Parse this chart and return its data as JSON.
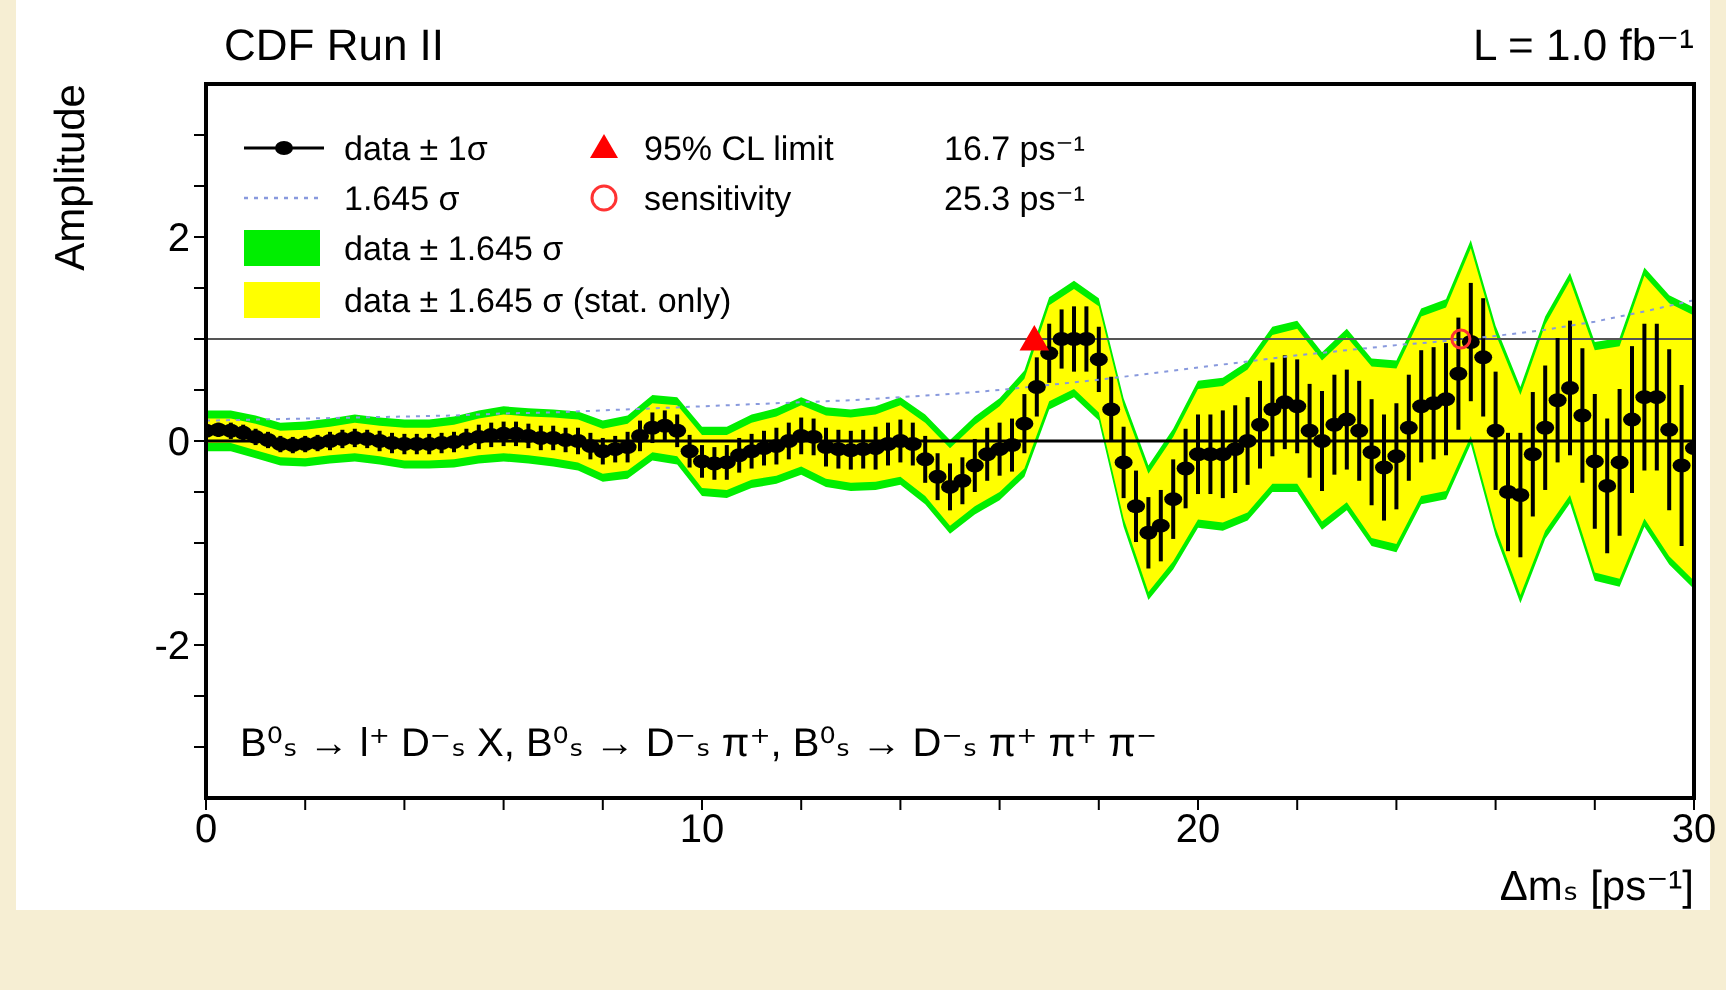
{
  "chart_data": {
    "type": "scatter",
    "title": "CDF Run II",
    "subtitle": "L = 1.0 fb⁻¹",
    "xlabel": "Δmₛ [ps⁻¹]",
    "ylabel": "Amplitude",
    "annotations": [
      "16.7 ps⁻¹",
      "25.3 ps⁻¹",
      "B⁰ₛ → l⁺ D⁻ₛ X, B⁰ₛ → D⁻ₛ π⁺, B⁰ₛ → D⁻ₛ π⁺ π⁺ π⁻"
    ],
    "xlim": [
      0,
      30
    ],
    "ylim": [
      -3.5,
      3.5
    ],
    "xticks": [
      0,
      {
        "value": 2,
        "label": null
      },
      {
        "value": 4,
        "label": null
      },
      {
        "value": 6,
        "label": null
      },
      {
        "value": 8,
        "label": null
      },
      10,
      {
        "value": 12,
        "label": null
      },
      {
        "value": 14,
        "label": null
      },
      {
        "value": 16,
        "label": null
      },
      {
        "value": 18,
        "label": null
      },
      20,
      {
        "value": 22,
        "label": null
      },
      {
        "value": 24,
        "label": null
      },
      {
        "value": 26,
        "label": null
      },
      {
        "value": 28,
        "label": null
      },
      30
    ],
    "yticks": [
      {
        "value": -3,
        "label": null
      },
      {
        "value": -2.5,
        "label": null
      },
      -2,
      {
        "value": -1.5,
        "label": null
      },
      {
        "value": -1,
        "label": null
      },
      {
        "value": -0.5,
        "label": null
      },
      0,
      {
        "value": 0.5,
        "label": null
      },
      {
        "value": 1,
        "label": null
      },
      {
        "value": 1.5,
        "label": null
      },
      2,
      {
        "value": 2.5,
        "label": null
      },
      {
        "value": 3,
        "label": null
      }
    ],
    "legend": "top left",
    "ref_lines": [
      {
        "axis": "y",
        "value": 0,
        "color": "#000000"
      },
      {
        "axis": "y",
        "value": 1,
        "color": "#555555"
      }
    ],
    "x": [
      0,
      0.25,
      0.5,
      0.75,
      1,
      1.25,
      1.5,
      1.75,
      2,
      2.25,
      2.5,
      2.75,
      3,
      3.25,
      3.5,
      3.75,
      4,
      4.25,
      4.5,
      4.75,
      5,
      5.25,
      5.5,
      5.75,
      6,
      6.25,
      6.5,
      6.75,
      7,
      7.25,
      7.5,
      7.75,
      8,
      8.25,
      8.5,
      8.75,
      9,
      9.25,
      9.5,
      9.75,
      10,
      10.25,
      10.5,
      10.75,
      11,
      11.25,
      11.5,
      11.75,
      12,
      12.25,
      12.5,
      12.75,
      13,
      13.25,
      13.5,
      13.75,
      14,
      14.25,
      14.5,
      14.75,
      15,
      15.25,
      15.5,
      15.75,
      16,
      16.25,
      16.5,
      16.75,
      17,
      17.25,
      17.5,
      17.75,
      18,
      18.25,
      18.5,
      18.75,
      19,
      19.25,
      19.5,
      19.75,
      20,
      20.25,
      20.5,
      20.75,
      21,
      21.25,
      21.5,
      21.75,
      22,
      22.25,
      22.5,
      22.75,
      23,
      23.25,
      23.5,
      23.75,
      24,
      24.25,
      24.5,
      24.75,
      25,
      25.25,
      25.5,
      25.75,
      26,
      26.25,
      26.5,
      26.75,
      27,
      27.25,
      27.5,
      27.75,
      28,
      28.25,
      28.5,
      28.75,
      29,
      29.25,
      29.5,
      29.75,
      30
    ],
    "series": [
      {
        "type": "line",
        "name": "data ± 1.645 σ",
        "color": "#00ee00",
        "marker": "none",
        "x": [
          0,
          0.5,
          1,
          1.5,
          2,
          2.5,
          3,
          3.5,
          4,
          4.5,
          5,
          5.5,
          6,
          6.5,
          7,
          7.5,
          8,
          8.5,
          9,
          9.5,
          10,
          10.5,
          11,
          11.5,
          12,
          12.5,
          13,
          13.5,
          14,
          14.5,
          15,
          15.5,
          16,
          16.5,
          17,
          17.5,
          18,
          18.5,
          19,
          19.5,
          20,
          20.5,
          21,
          21.5,
          22,
          22.5,
          23,
          23.5,
          24,
          24.5,
          25,
          25.5,
          26,
          26.5,
          27,
          27.5,
          28,
          28.5,
          29,
          29.5,
          30
        ],
        "values": [
          null,
          null,
          null,
          null,
          null,
          null,
          null,
          null,
          null,
          null,
          null,
          null,
          null,
          null,
          null,
          null,
          null,
          null,
          null,
          null,
          null,
          null,
          null,
          null,
          null,
          null,
          null,
          null,
          null,
          null,
          null,
          null,
          null,
          null,
          null,
          null,
          null,
          null,
          null,
          null,
          null,
          null,
          null,
          null,
          null,
          null,
          null,
          null,
          null,
          null,
          null,
          null,
          null,
          null,
          null,
          null,
          null,
          null,
          null,
          null,
          null
        ],
        "lower": [
          -0.1,
          -0.1,
          -0.17,
          -0.24,
          -0.25,
          -0.22,
          -0.2,
          -0.23,
          -0.27,
          -0.27,
          -0.26,
          -0.22,
          -0.2,
          -0.22,
          -0.25,
          -0.29,
          -0.4,
          -0.37,
          -0.19,
          -0.23,
          -0.54,
          -0.56,
          -0.46,
          -0.42,
          -0.33,
          -0.45,
          -0.49,
          -0.48,
          -0.43,
          -0.62,
          -0.91,
          -0.72,
          -0.58,
          -0.35,
          0.31,
          0.43,
          0.2,
          -0.84,
          -1.56,
          -1.26,
          -0.85,
          -0.88,
          -0.78,
          -0.5,
          -0.5,
          -0.87,
          -0.68,
          -1.03,
          -1.09,
          -0.62,
          -0.57,
          -0.03,
          -0.93,
          -1.59,
          -0.96,
          -0.61,
          -1.37,
          -1.43,
          -0.84,
          -1.21,
          -1.45
        ],
        "upper": [
          0.3,
          0.3,
          0.25,
          0.18,
          0.19,
          0.22,
          0.26,
          0.23,
          0.21,
          0.21,
          0.24,
          0.3,
          0.34,
          0.32,
          0.31,
          0.29,
          0.2,
          0.25,
          0.45,
          0.43,
          0.14,
          0.14,
          0.26,
          0.32,
          0.43,
          0.33,
          0.31,
          0.34,
          0.43,
          0.26,
          0.01,
          0.24,
          0.42,
          0.69,
          1.41,
          1.57,
          1.4,
          0.42,
          -0.24,
          0.12,
          0.59,
          0.62,
          0.78,
          1.12,
          1.18,
          0.87,
          1.1,
          0.81,
          0.79,
          1.3,
          1.39,
          1.97,
          1.13,
          0.53,
          1.22,
          1.65,
          0.97,
          1.01,
          1.7,
          1.43,
          1.31
        ]
      },
      {
        "type": "line",
        "name": "data ± 1.645 σ (stat. only)",
        "color": "#ffff00",
        "marker": "none",
        "x": [
          0,
          0.5,
          1,
          1.5,
          2,
          2.5,
          3,
          3.5,
          4,
          4.5,
          5,
          5.5,
          6,
          6.5,
          7,
          7.5,
          8,
          8.5,
          9,
          9.5,
          10,
          10.5,
          11,
          11.5,
          12,
          12.5,
          13,
          13.5,
          14,
          14.5,
          15,
          15.5,
          16,
          16.5,
          17,
          17.5,
          18,
          18.5,
          19,
          19.5,
          20,
          20.5,
          21,
          21.5,
          22,
          22.5,
          23,
          23.5,
          24,
          24.5,
          25,
          25.5,
          26,
          26.5,
          27,
          27.5,
          28,
          28.5,
          29,
          29.5,
          30
        ],
        "values": [
          null,
          null,
          null,
          null,
          null,
          null,
          null,
          null,
          null,
          null,
          null,
          null,
          null,
          null,
          null,
          null,
          null,
          null,
          null,
          null,
          null,
          null,
          null,
          null,
          null,
          null,
          null,
          null,
          null,
          null,
          null,
          null,
          null,
          null,
          null,
          null,
          null,
          null,
          null,
          null,
          null,
          null,
          null,
          null,
          null,
          null,
          null,
          null,
          null,
          null,
          null,
          null,
          null,
          null,
          null,
          null,
          null,
          null,
          null,
          null,
          null
        ],
        "lower": [
          -0.02,
          -0.02,
          -0.09,
          -0.16,
          -0.17,
          -0.14,
          -0.12,
          -0.15,
          -0.19,
          -0.19,
          -0.18,
          -0.14,
          -0.12,
          -0.14,
          -0.17,
          -0.21,
          -0.32,
          -0.29,
          -0.11,
          -0.15,
          -0.46,
          -0.48,
          -0.38,
          -0.34,
          -0.25,
          -0.37,
          -0.41,
          -0.4,
          -0.35,
          -0.54,
          -0.83,
          -0.64,
          -0.5,
          -0.27,
          0.39,
          0.51,
          0.28,
          -0.76,
          -1.48,
          -1.18,
          -0.77,
          -0.8,
          -0.7,
          -0.42,
          -0.42,
          -0.79,
          -0.6,
          -0.95,
          -1.01,
          -0.54,
          -0.49,
          0.05,
          -0.85,
          -1.51,
          -0.88,
          -0.53,
          -1.29,
          -1.35,
          -0.76,
          -1.13,
          -1.37
        ],
        "upper": [
          0.22,
          0.22,
          0.17,
          0.1,
          0.11,
          0.14,
          0.18,
          0.15,
          0.13,
          0.13,
          0.16,
          0.22,
          0.26,
          0.24,
          0.23,
          0.21,
          0.12,
          0.17,
          0.37,
          0.35,
          0.06,
          0.06,
          0.18,
          0.24,
          0.35,
          0.25,
          0.23,
          0.26,
          0.35,
          0.18,
          -0.07,
          0.16,
          0.34,
          0.61,
          1.33,
          1.49,
          1.32,
          0.34,
          -0.32,
          0.04,
          0.51,
          0.54,
          0.7,
          1.04,
          1.1,
          0.79,
          1.02,
          0.73,
          0.71,
          1.22,
          1.31,
          1.89,
          1.05,
          0.45,
          1.14,
          1.57,
          0.89,
          0.93,
          1.62,
          1.35,
          1.23
        ]
      },
      {
        "name": "data ± 1σ",
        "color": "#000000",
        "marker": "circle",
        "values": [
          0.1,
          0.11,
          0.1,
          0.08,
          0.04,
          0.01,
          -0.03,
          -0.04,
          -0.03,
          -0.02,
          0,
          0.02,
          0.03,
          0.02,
          0,
          -0.02,
          -0.03,
          -0.03,
          -0.03,
          -0.02,
          -0.01,
          0.02,
          0.04,
          0.06,
          0.07,
          0.07,
          0.05,
          0.03,
          0.03,
          0.01,
          0,
          -0.05,
          -0.1,
          -0.08,
          -0.06,
          0.05,
          0.13,
          0.15,
          0.1,
          -0.1,
          -0.2,
          -0.22,
          -0.21,
          -0.14,
          -0.1,
          -0.07,
          -0.05,
          0,
          0.05,
          0.04,
          -0.06,
          -0.08,
          -0.09,
          -0.08,
          -0.07,
          -0.03,
          0,
          -0.03,
          -0.18,
          -0.35,
          -0.45,
          -0.39,
          -0.24,
          -0.13,
          -0.08,
          -0.04,
          0.17,
          0.53,
          0.86,
          1,
          1,
          1,
          0.8,
          0.31,
          -0.21,
          -0.64,
          -0.9,
          -0.83,
          -0.57,
          -0.27,
          -0.13,
          -0.13,
          -0.13,
          -0.08,
          0,
          0.16,
          0.31,
          0.38,
          0.34,
          0.1,
          0,
          0.16,
          0.21,
          0.1,
          -0.11,
          -0.26,
          -0.15,
          0.13,
          0.34,
          0.37,
          0.41,
          0.66,
          0.97,
          0.82,
          0.1,
          -0.5,
          -0.53,
          -0.13,
          0.13,
          0.4,
          0.52,
          0.25,
          -0.2,
          -0.44,
          -0.21,
          0.21,
          0.43,
          0.43,
          0.11,
          -0.24,
          -0.07
        ],
        "errors": [
          0.07,
          0.07,
          0.08,
          0.08,
          0.08,
          0.08,
          0.08,
          0.08,
          0.08,
          0.08,
          0.09,
          0.09,
          0.09,
          0.09,
          0.1,
          0.1,
          0.1,
          0.1,
          0.1,
          0.1,
          0.1,
          0.1,
          0.12,
          0.12,
          0.12,
          0.12,
          0.12,
          0.12,
          0.12,
          0.12,
          0.13,
          0.13,
          0.13,
          0.13,
          0.15,
          0.15,
          0.15,
          0.15,
          0.16,
          0.16,
          0.16,
          0.16,
          0.17,
          0.17,
          0.17,
          0.17,
          0.18,
          0.18,
          0.18,
          0.18,
          0.19,
          0.19,
          0.19,
          0.19,
          0.21,
          0.21,
          0.21,
          0.21,
          0.23,
          0.23,
          0.23,
          0.23,
          0.26,
          0.26,
          0.26,
          0.26,
          0.29,
          0.29,
          0.29,
          0.29,
          0.32,
          0.32,
          0.32,
          0.32,
          0.35,
          0.35,
          0.35,
          0.35,
          0.39,
          0.39,
          0.39,
          0.39,
          0.43,
          0.43,
          0.43,
          0.43,
          0.46,
          0.46,
          0.46,
          0.46,
          0.49,
          0.49,
          0.49,
          0.49,
          0.52,
          0.52,
          0.52,
          0.52,
          0.55,
          0.55,
          0.55,
          0.55,
          0.58,
          0.58,
          0.58,
          0.58,
          0.61,
          0.61,
          0.61,
          0.61,
          0.66,
          0.66,
          0.66,
          0.66,
          0.72,
          0.72,
          0.72,
          0.72,
          0.79,
          0.79,
          0.79
        ]
      },
      {
        "type": "line",
        "name": "1.645 σ",
        "color": "#8899dd",
        "line_style": "dotted",
        "marker": "none",
        "x": [
          0,
          1,
          2,
          3,
          4,
          5,
          6,
          7,
          8,
          9,
          10,
          11,
          12,
          13,
          14,
          15,
          16,
          17,
          18,
          19,
          20,
          21,
          22,
          23,
          24,
          25,
          26,
          27,
          28,
          29,
          30
        ],
        "values": [
          0.2,
          0.21,
          0.22,
          0.23,
          0.24,
          0.25,
          0.27,
          0.28,
          0.3,
          0.32,
          0.34,
          0.36,
          0.38,
          0.4,
          0.43,
          0.46,
          0.5,
          0.55,
          0.6,
          0.66,
          0.72,
          0.78,
          0.84,
          0.89,
          0.94,
          0.98,
          1.03,
          1.09,
          1.17,
          1.27,
          1.38
        ]
      },
      {
        "name": "95% CL limit",
        "color": "#ff0000",
        "marker": "triangle",
        "x": [
          16.7
        ],
        "values": [
          0.97
        ]
      },
      {
        "name": "sensitivity",
        "color": "#ff3333",
        "marker": "circle",
        "x": [
          25.3
        ],
        "values": [
          1.0
        ]
      }
    ]
  }
}
